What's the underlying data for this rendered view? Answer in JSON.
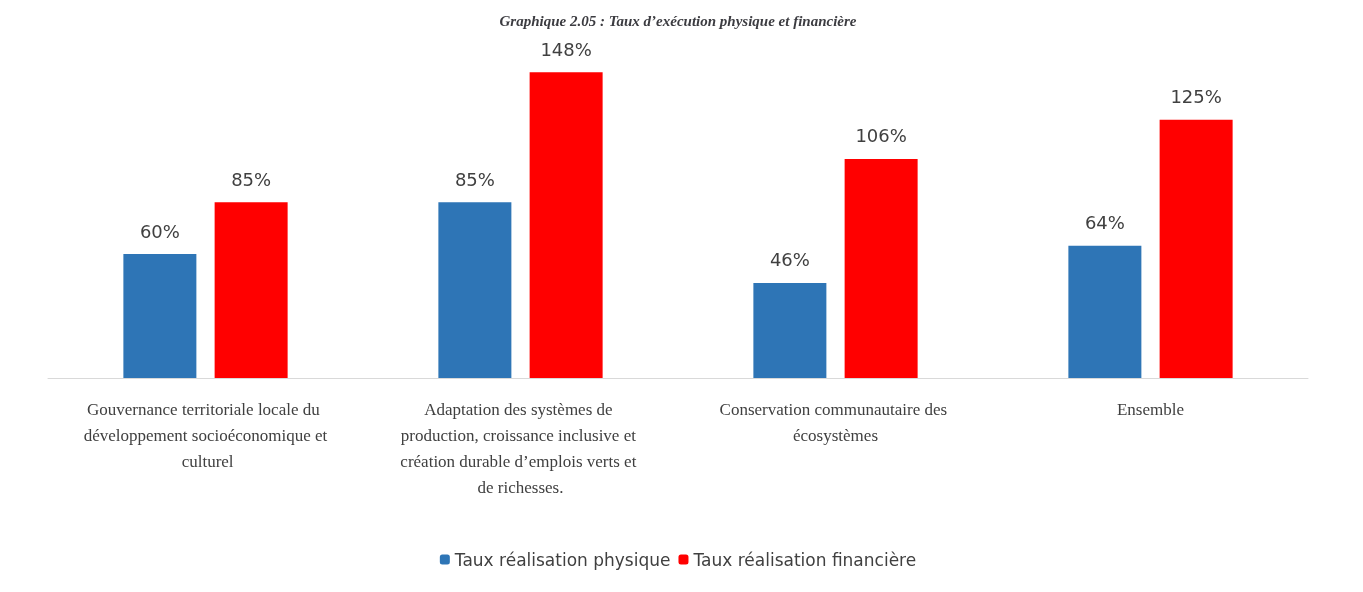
{
  "chart_data": {
    "type": "bar",
    "title": "Graphique 2.05 : Taux d’exécution physique et financière",
    "categories": [
      "Gouvernance territoriale locale du développement socioéconomique et culturel",
      "Adaptation des systèmes de production, croissance inclusive et création durable d’emplois verts et de richesses.",
      "Conservation communautaire des écosystèmes",
      "Ensemble"
    ],
    "series": [
      {
        "name": "Taux réalisation physique",
        "color": "#2e75b6",
        "values": [
          60,
          85,
          46,
          64
        ],
        "value_labels": [
          "60%",
          "85%",
          "46%",
          "64%"
        ]
      },
      {
        "name": "Taux réalisation financière",
        "color": "#ff0000",
        "values": [
          85,
          148,
          106,
          125
        ],
        "value_labels": [
          "85%",
          "148%",
          "106%",
          "125%"
        ]
      }
    ],
    "legend": "bottom",
    "grid": false
  }
}
